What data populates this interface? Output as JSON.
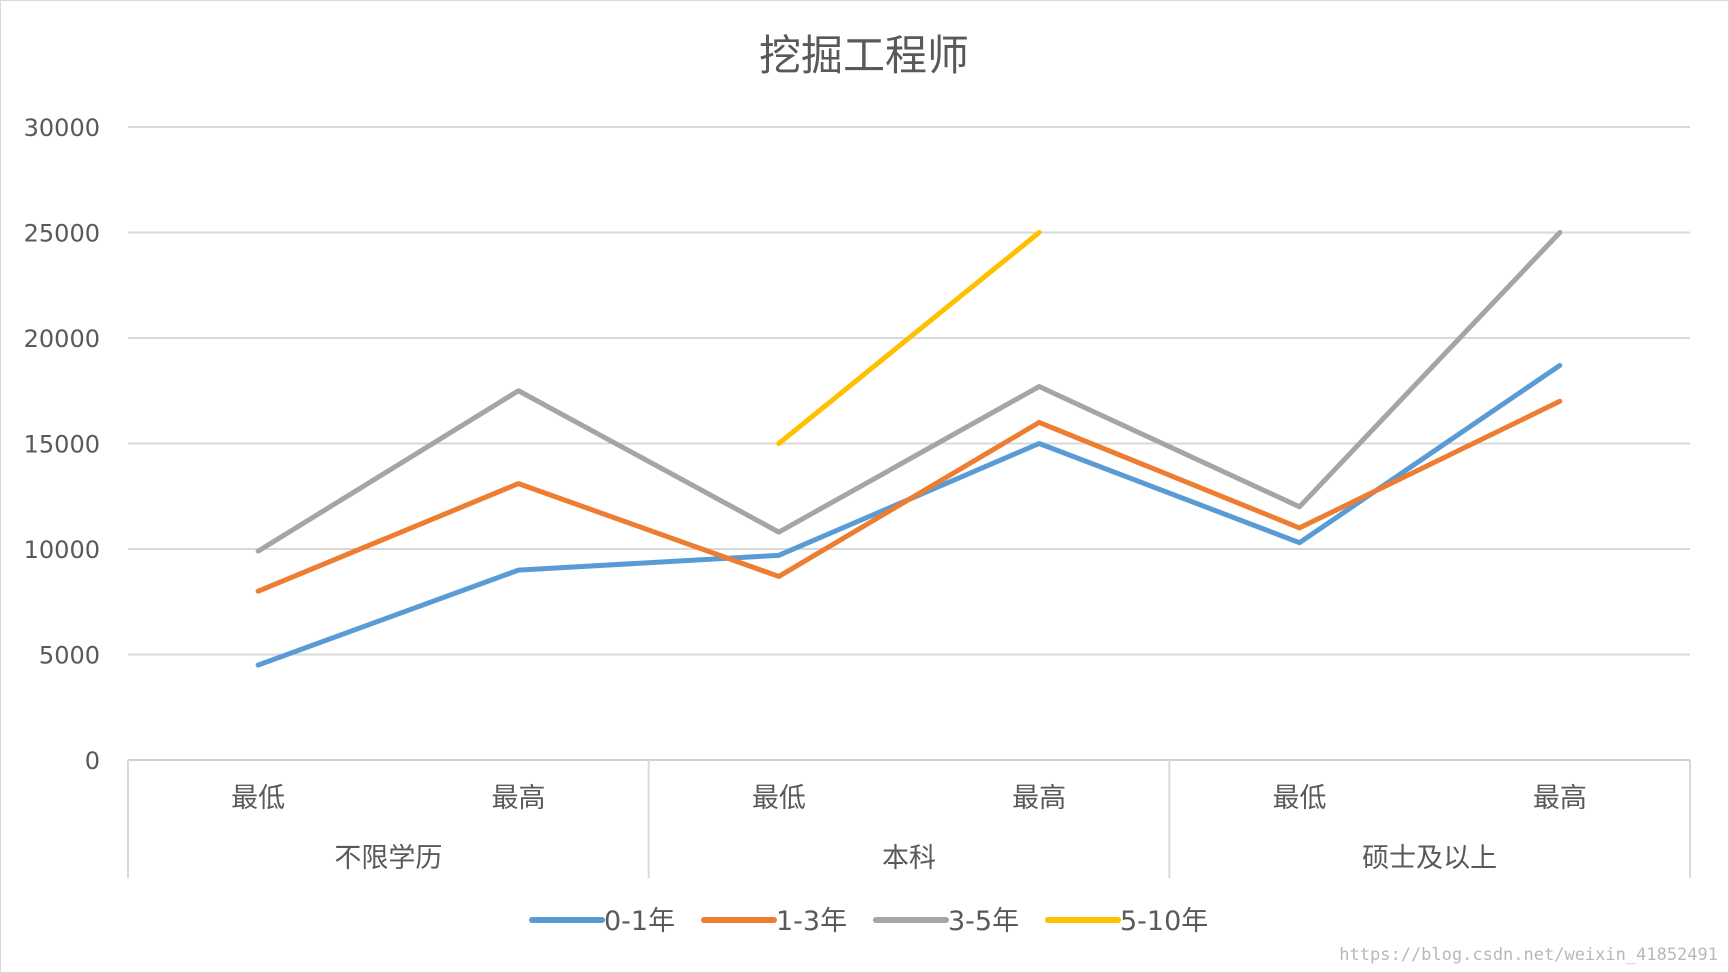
{
  "chart_data": {
    "type": "line",
    "title": "挖掘工程师",
    "categories": [
      {
        "sub": "最低",
        "group": "不限学历"
      },
      {
        "sub": "最高",
        "group": "不限学历"
      },
      {
        "sub": "最低",
        "group": "本科"
      },
      {
        "sub": "最高",
        "group": "本科"
      },
      {
        "sub": "最低",
        "group": "硕士及以上"
      },
      {
        "sub": "最高",
        "group": "硕士及以上"
      }
    ],
    "groups": [
      "不限学历",
      "本科",
      "硕士及以上"
    ],
    "ylim": [
      0,
      30000
    ],
    "yticks": [
      "30000",
      "25000",
      "20000",
      "15000",
      "10000",
      "5000",
      "0"
    ],
    "grid": true,
    "legend_position": "bottom",
    "series": [
      {
        "name": "0-1年",
        "color": "#5b9bd5",
        "values": [
          4500,
          9000,
          9700,
          15000,
          10300,
          18700
        ]
      },
      {
        "name": "1-3年",
        "color": "#ed7d31",
        "values": [
          8000,
          13100,
          8700,
          16000,
          11000,
          17000
        ]
      },
      {
        "name": "3-5年",
        "color": "#a5a5a5",
        "values": [
          9900,
          17500,
          10800,
          17700,
          12000,
          25000
        ]
      },
      {
        "name": "5-10年",
        "color": "#ffc000",
        "values": [
          null,
          null,
          15000,
          25000,
          null,
          null
        ]
      }
    ]
  },
  "watermark": "https://blog.csdn.net/weixin_41852491"
}
